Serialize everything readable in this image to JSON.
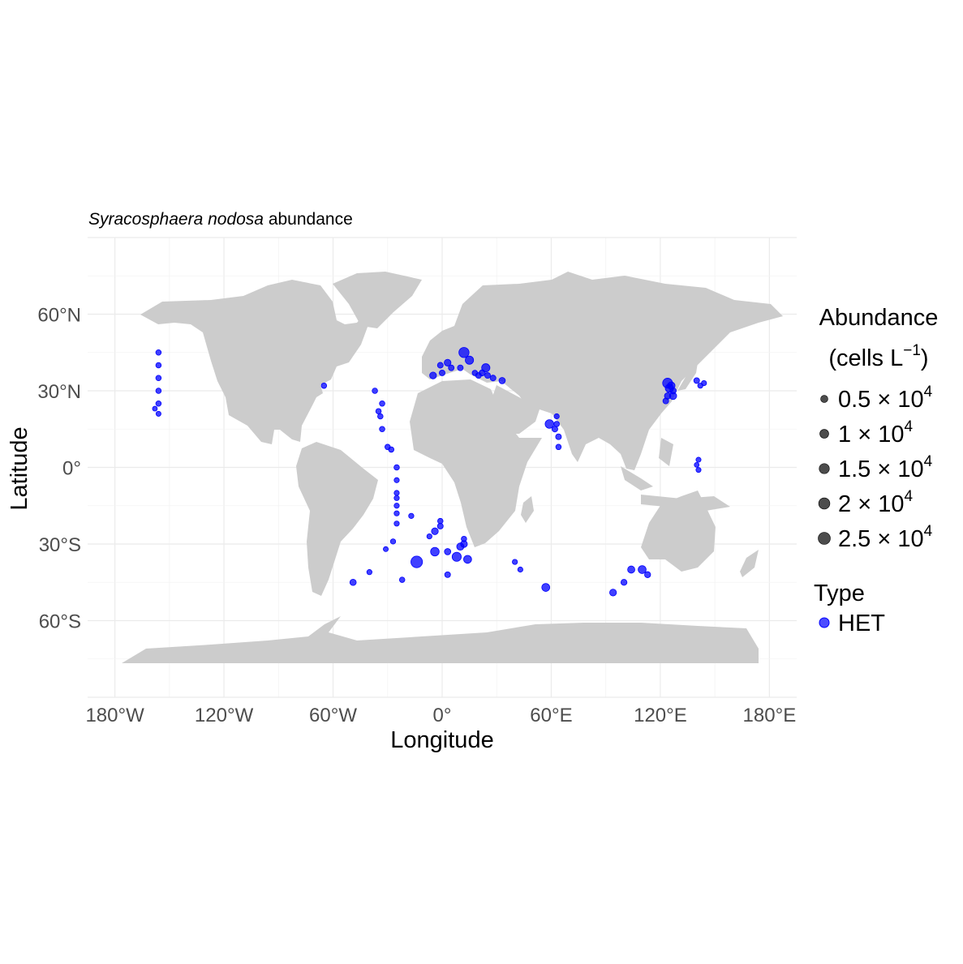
{
  "chart_data": {
    "type": "scatter",
    "title_italic": "Syracosphaera nodosa",
    "title_rest": " abundance",
    "xlabel": "Longitude",
    "ylabel": "Latitude",
    "xlim": [
      -195,
      195
    ],
    "ylim": [
      -90,
      90
    ],
    "x_ticks": [
      {
        "value": -180,
        "label": "180°W"
      },
      {
        "value": -120,
        "label": "120°W"
      },
      {
        "value": -60,
        "label": "60°W"
      },
      {
        "value": 0,
        "label": "0°"
      },
      {
        "value": 60,
        "label": "60°E"
      },
      {
        "value": 120,
        "label": "120°E"
      },
      {
        "value": 180,
        "label": "180°E"
      }
    ],
    "y_ticks": [
      {
        "value": 60,
        "label": "60°N"
      },
      {
        "value": 30,
        "label": "30°N"
      },
      {
        "value": 0,
        "label": "0°"
      },
      {
        "value": -30,
        "label": "30°S"
      },
      {
        "value": -60,
        "label": "60°S"
      }
    ],
    "grid": true,
    "land_color": "#cccccc",
    "point_color": "#0000ff",
    "legend": {
      "position": "right",
      "size_title_line1": "Abundance",
      "size_title_line2_pre": "(cells L",
      "size_title_sup": "−1",
      "size_title_line2_post": ")",
      "size_items": [
        {
          "value": 5000,
          "mant": "0.5",
          "exp": "4"
        },
        {
          "value": 10000,
          "mant": "1",
          "exp": "4"
        },
        {
          "value": 15000,
          "mant": "1.5",
          "exp": "4"
        },
        {
          "value": 20000,
          "mant": "2",
          "exp": "4"
        },
        {
          "value": 25000,
          "mant": "2.5",
          "exp": "4"
        }
      ],
      "type_title": "Type",
      "type_items": [
        {
          "label": "HET",
          "color": "#0000ff"
        }
      ]
    },
    "series": [
      {
        "name": "HET",
        "points": [
          {
            "x": -156,
            "y": 45,
            "v": 1500
          },
          {
            "x": -156,
            "y": 40,
            "v": 1500
          },
          {
            "x": -156,
            "y": 35,
            "v": 1500
          },
          {
            "x": -156,
            "y": 30,
            "v": 1500
          },
          {
            "x": -156,
            "y": 25,
            "v": 1500
          },
          {
            "x": -158,
            "y": 23,
            "v": 800
          },
          {
            "x": -156,
            "y": 21,
            "v": 1000
          },
          {
            "x": -65,
            "y": 32,
            "v": 1500
          },
          {
            "x": -37,
            "y": 30,
            "v": 1500
          },
          {
            "x": -35,
            "y": 22,
            "v": 1500
          },
          {
            "x": -33,
            "y": 25,
            "v": 1500
          },
          {
            "x": -34,
            "y": 20,
            "v": 1500
          },
          {
            "x": -33,
            "y": 15,
            "v": 1500
          },
          {
            "x": -30,
            "y": 8,
            "v": 1500
          },
          {
            "x": -28,
            "y": 7,
            "v": 1500
          },
          {
            "x": -25,
            "y": 0,
            "v": 1500
          },
          {
            "x": -25,
            "y": -5,
            "v": 1200
          },
          {
            "x": -25,
            "y": -10,
            "v": 1200
          },
          {
            "x": -25,
            "y": -12,
            "v": 1200
          },
          {
            "x": -25,
            "y": -15,
            "v": 1200
          },
          {
            "x": -25,
            "y": -18,
            "v": 1200
          },
          {
            "x": -25,
            "y": -22,
            "v": 1200
          },
          {
            "x": -17,
            "y": -19,
            "v": 1200
          },
          {
            "x": -27,
            "y": -29,
            "v": 1200
          },
          {
            "x": -31,
            "y": -32,
            "v": 1000
          },
          {
            "x": -40,
            "y": -41,
            "v": 1200
          },
          {
            "x": -49,
            "y": -45,
            "v": 3000
          },
          {
            "x": -22,
            "y": -44,
            "v": 1500
          },
          {
            "x": -14,
            "y": -37,
            "v": 22000
          },
          {
            "x": -7,
            "y": -27,
            "v": 1200
          },
          {
            "x": -4,
            "y": -25,
            "v": 4000
          },
          {
            "x": -4,
            "y": -33,
            "v": 9000
          },
          {
            "x": -1,
            "y": -23,
            "v": 2000
          },
          {
            "x": -1,
            "y": -21,
            "v": 1500
          },
          {
            "x": 3,
            "y": -33,
            "v": 3000
          },
          {
            "x": 3,
            "y": -42,
            "v": 2000
          },
          {
            "x": 8,
            "y": -35,
            "v": 11000
          },
          {
            "x": 10,
            "y": -31,
            "v": 5000
          },
          {
            "x": 12,
            "y": -30,
            "v": 4000
          },
          {
            "x": 12,
            "y": -28,
            "v": 1500
          },
          {
            "x": 14,
            "y": -36,
            "v": 7000
          },
          {
            "x": 40,
            "y": -37,
            "v": 1200
          },
          {
            "x": 43,
            "y": -40,
            "v": 1200
          },
          {
            "x": 57,
            "y": -47,
            "v": 7000
          },
          {
            "x": 63,
            "y": 20,
            "v": 1200
          },
          {
            "x": 63,
            "y": 17,
            "v": 1500
          },
          {
            "x": 59,
            "y": 17,
            "v": 9000
          },
          {
            "x": 62,
            "y": 15,
            "v": 2000
          },
          {
            "x": 64,
            "y": 12,
            "v": 2000
          },
          {
            "x": 64,
            "y": 8,
            "v": 1500
          },
          {
            "x": 94,
            "y": -49,
            "v": 4000
          },
          {
            "x": 100,
            "y": -45,
            "v": 2500
          },
          {
            "x": 104,
            "y": -40,
            "v": 5000
          },
          {
            "x": 110,
            "y": -40,
            "v": 7000
          },
          {
            "x": 113,
            "y": -42,
            "v": 2500
          },
          {
            "x": 123,
            "y": 26,
            "v": 2000
          },
          {
            "x": 124,
            "y": 28,
            "v": 3000
          },
          {
            "x": 125,
            "y": 31,
            "v": 8000
          },
          {
            "x": 124,
            "y": 33,
            "v": 14000
          },
          {
            "x": 127,
            "y": 28,
            "v": 5000
          },
          {
            "x": 126,
            "y": 32,
            "v": 6000
          },
          {
            "x": 127,
            "y": 30,
            "v": 3000
          },
          {
            "x": 140,
            "y": 34,
            "v": 2000
          },
          {
            "x": 142,
            "y": 32,
            "v": 1200
          },
          {
            "x": 144,
            "y": 33,
            "v": 1200
          },
          {
            "x": 141,
            "y": 3,
            "v": 1000
          },
          {
            "x": 141,
            "y": -1,
            "v": 1000
          },
          {
            "x": 140,
            "y": 1,
            "v": 800
          },
          {
            "x": 12,
            "y": 45,
            "v": 15000
          },
          {
            "x": 15,
            "y": 42,
            "v": 8000
          },
          {
            "x": 3,
            "y": 41,
            "v": 4000
          },
          {
            "x": -1,
            "y": 40,
            "v": 2000
          },
          {
            "x": -5,
            "y": 36,
            "v": 4000
          },
          {
            "x": 0,
            "y": 37,
            "v": 2000
          },
          {
            "x": 5,
            "y": 39,
            "v": 2000
          },
          {
            "x": 10,
            "y": 39,
            "v": 2000
          },
          {
            "x": 20,
            "y": 36,
            "v": 2000
          },
          {
            "x": 22,
            "y": 37,
            "v": 2500
          },
          {
            "x": 24,
            "y": 39,
            "v": 8000
          },
          {
            "x": 25,
            "y": 36,
            "v": 2000
          },
          {
            "x": 28,
            "y": 35,
            "v": 2000
          },
          {
            "x": 33,
            "y": 34,
            "v": 3000
          },
          {
            "x": 18,
            "y": 37,
            "v": 1500
          }
        ]
      }
    ]
  }
}
